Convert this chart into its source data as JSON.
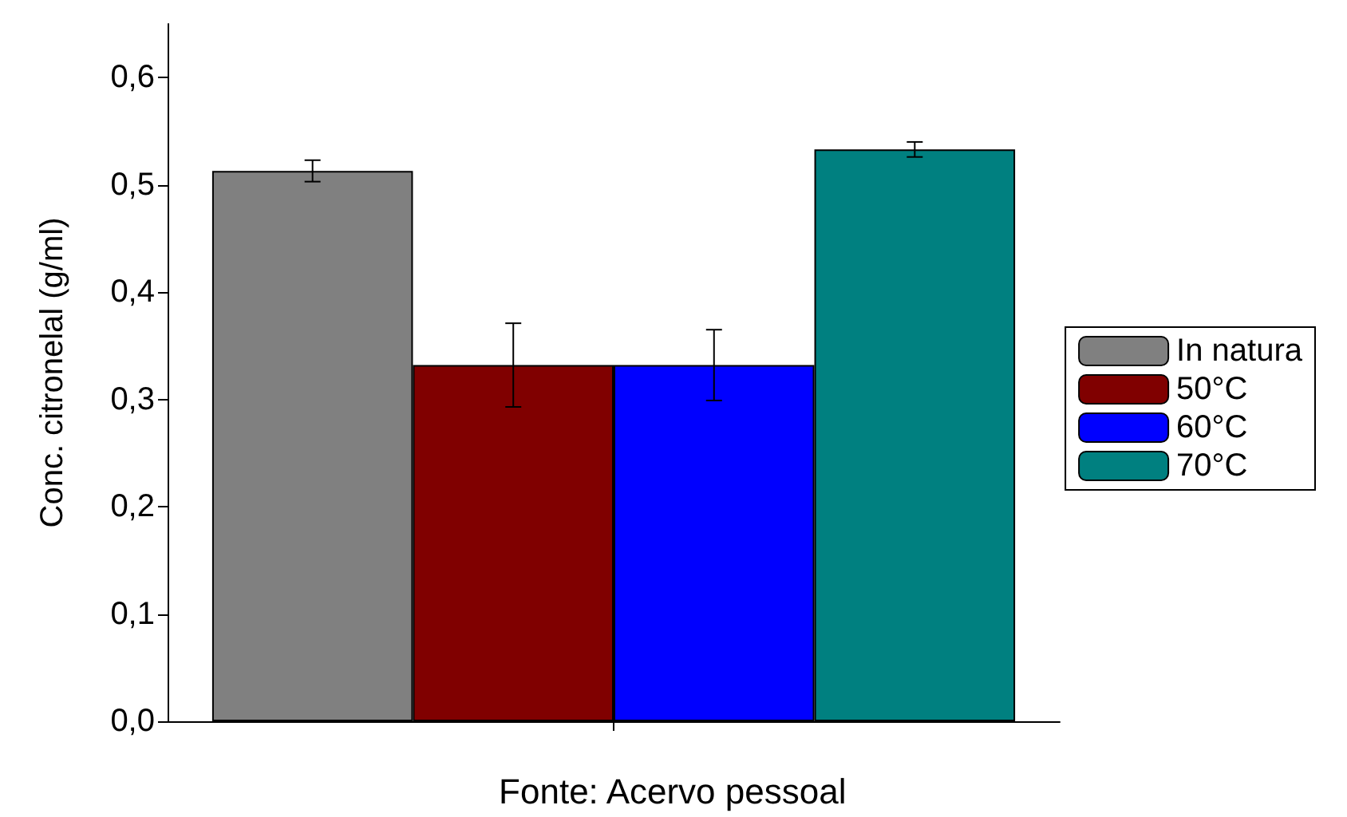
{
  "chart_data": {
    "type": "bar",
    "ylabel": "Conc. citronelal (g/ml)",
    "annotations": [
      "Fonte: Acervo pessoal"
    ],
    "categories": [
      null
    ],
    "series": [
      {
        "name": "In natura",
        "color": "#808080",
        "values": [
          0.513
        ],
        "errors": [
          0.01
        ]
      },
      {
        "name": "50°C",
        "color": "#800000",
        "values": [
          0.332
        ],
        "errors": [
          0.039
        ]
      },
      {
        "name": "60°C",
        "color": "#0000ff",
        "values": [
          0.332
        ],
        "errors": [
          0.033
        ]
      },
      {
        "name": "70°C",
        "color": "#008080",
        "values": [
          0.533
        ],
        "errors": [
          0.007
        ]
      }
    ],
    "ylim": [
      0,
      0.65
    ],
    "yticks": [
      {
        "value": 0,
        "label": "0,0"
      },
      {
        "value": 0.1,
        "label": "0,1"
      },
      {
        "value": 0.2,
        "label": "0,2"
      },
      {
        "value": 0.3,
        "label": "0,3"
      },
      {
        "value": 0.4,
        "label": "0,4"
      },
      {
        "value": 0.5,
        "label": "0,5"
      },
      {
        "value": 0.6,
        "label": "0,6"
      }
    ],
    "grid": false,
    "legend": "right"
  }
}
